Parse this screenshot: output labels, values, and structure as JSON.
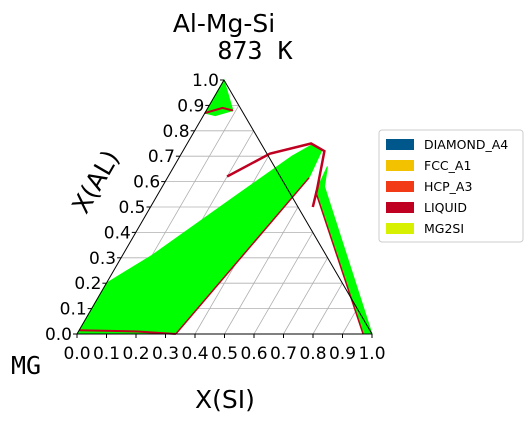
{
  "chart_data": {
    "type": "ternary-phase-diagram",
    "title": "Al-Mg-Si",
    "subtitle": "873  K",
    "corner_label": "MG",
    "xlabel": "X(SI)",
    "ylabel": "X(AL)",
    "x_ticks": [
      "0.0",
      "0.1",
      "0.2",
      "0.3",
      "0.4",
      "0.5",
      "0.6",
      "0.7",
      "0.8",
      "0.9",
      "1.0"
    ],
    "y_ticks": [
      "0.0",
      "0.1",
      "0.2",
      "0.3",
      "0.4",
      "0.5",
      "0.6",
      "0.7",
      "0.8",
      "0.9",
      "1.0"
    ],
    "xlim": [
      0,
      1
    ],
    "ylim": [
      0,
      1
    ],
    "grid": true,
    "legend_position": "right",
    "legend": [
      {
        "name": "DIAMOND_A4",
        "color": "#00578c"
      },
      {
        "name": "FCC_A1",
        "color": "#f2c100"
      },
      {
        "name": "HCP_A3",
        "color": "#f23a17"
      },
      {
        "name": "LIQUID",
        "color": "#c00020"
      },
      {
        "name": "MG2SI",
        "color": "#d7f000"
      }
    ],
    "region_color": "#00ff00",
    "boundary_color": "#c00020",
    "regions": [
      {
        "name": "two-phase-left",
        "points": [
          [
            0.0,
            0.0
          ],
          [
            0.335,
            0.0
          ],
          [
            0.48,
            0.615
          ],
          [
            0.47,
            0.72
          ],
          [
            0.425,
            0.745
          ],
          [
            0.38,
            0.7
          ],
          [
            0.25,
            0.52
          ],
          [
            0.1,
            0.31
          ],
          [
            0.0,
            0.2
          ]
        ]
      },
      {
        "name": "two-phase-right",
        "points": [
          [
            0.52,
            0.66
          ],
          [
            0.55,
            0.58
          ],
          [
            1.0,
            0.0
          ],
          [
            0.97,
            0.0
          ],
          [
            0.53,
            0.56
          ]
        ]
      },
      {
        "name": "al-corner",
        "points": [
          [
            0.0,
            0.87
          ],
          [
            0.0,
            1.0
          ],
          [
            0.09,
            0.88
          ],
          [
            0.04,
            0.86
          ]
        ]
      }
    ],
    "liquidus": [
      [
        0.2,
        0.62
      ],
      [
        0.3,
        0.71
      ],
      [
        0.42,
        0.75
      ],
      [
        0.48,
        0.72
      ],
      [
        0.5,
        0.66
      ],
      [
        0.53,
        0.57
      ],
      [
        0.55,
        0.5
      ]
    ],
    "al_corner_boundary": [
      [
        0.0,
        0.87
      ],
      [
        0.05,
        0.89
      ],
      [
        0.09,
        0.88
      ]
    ]
  }
}
